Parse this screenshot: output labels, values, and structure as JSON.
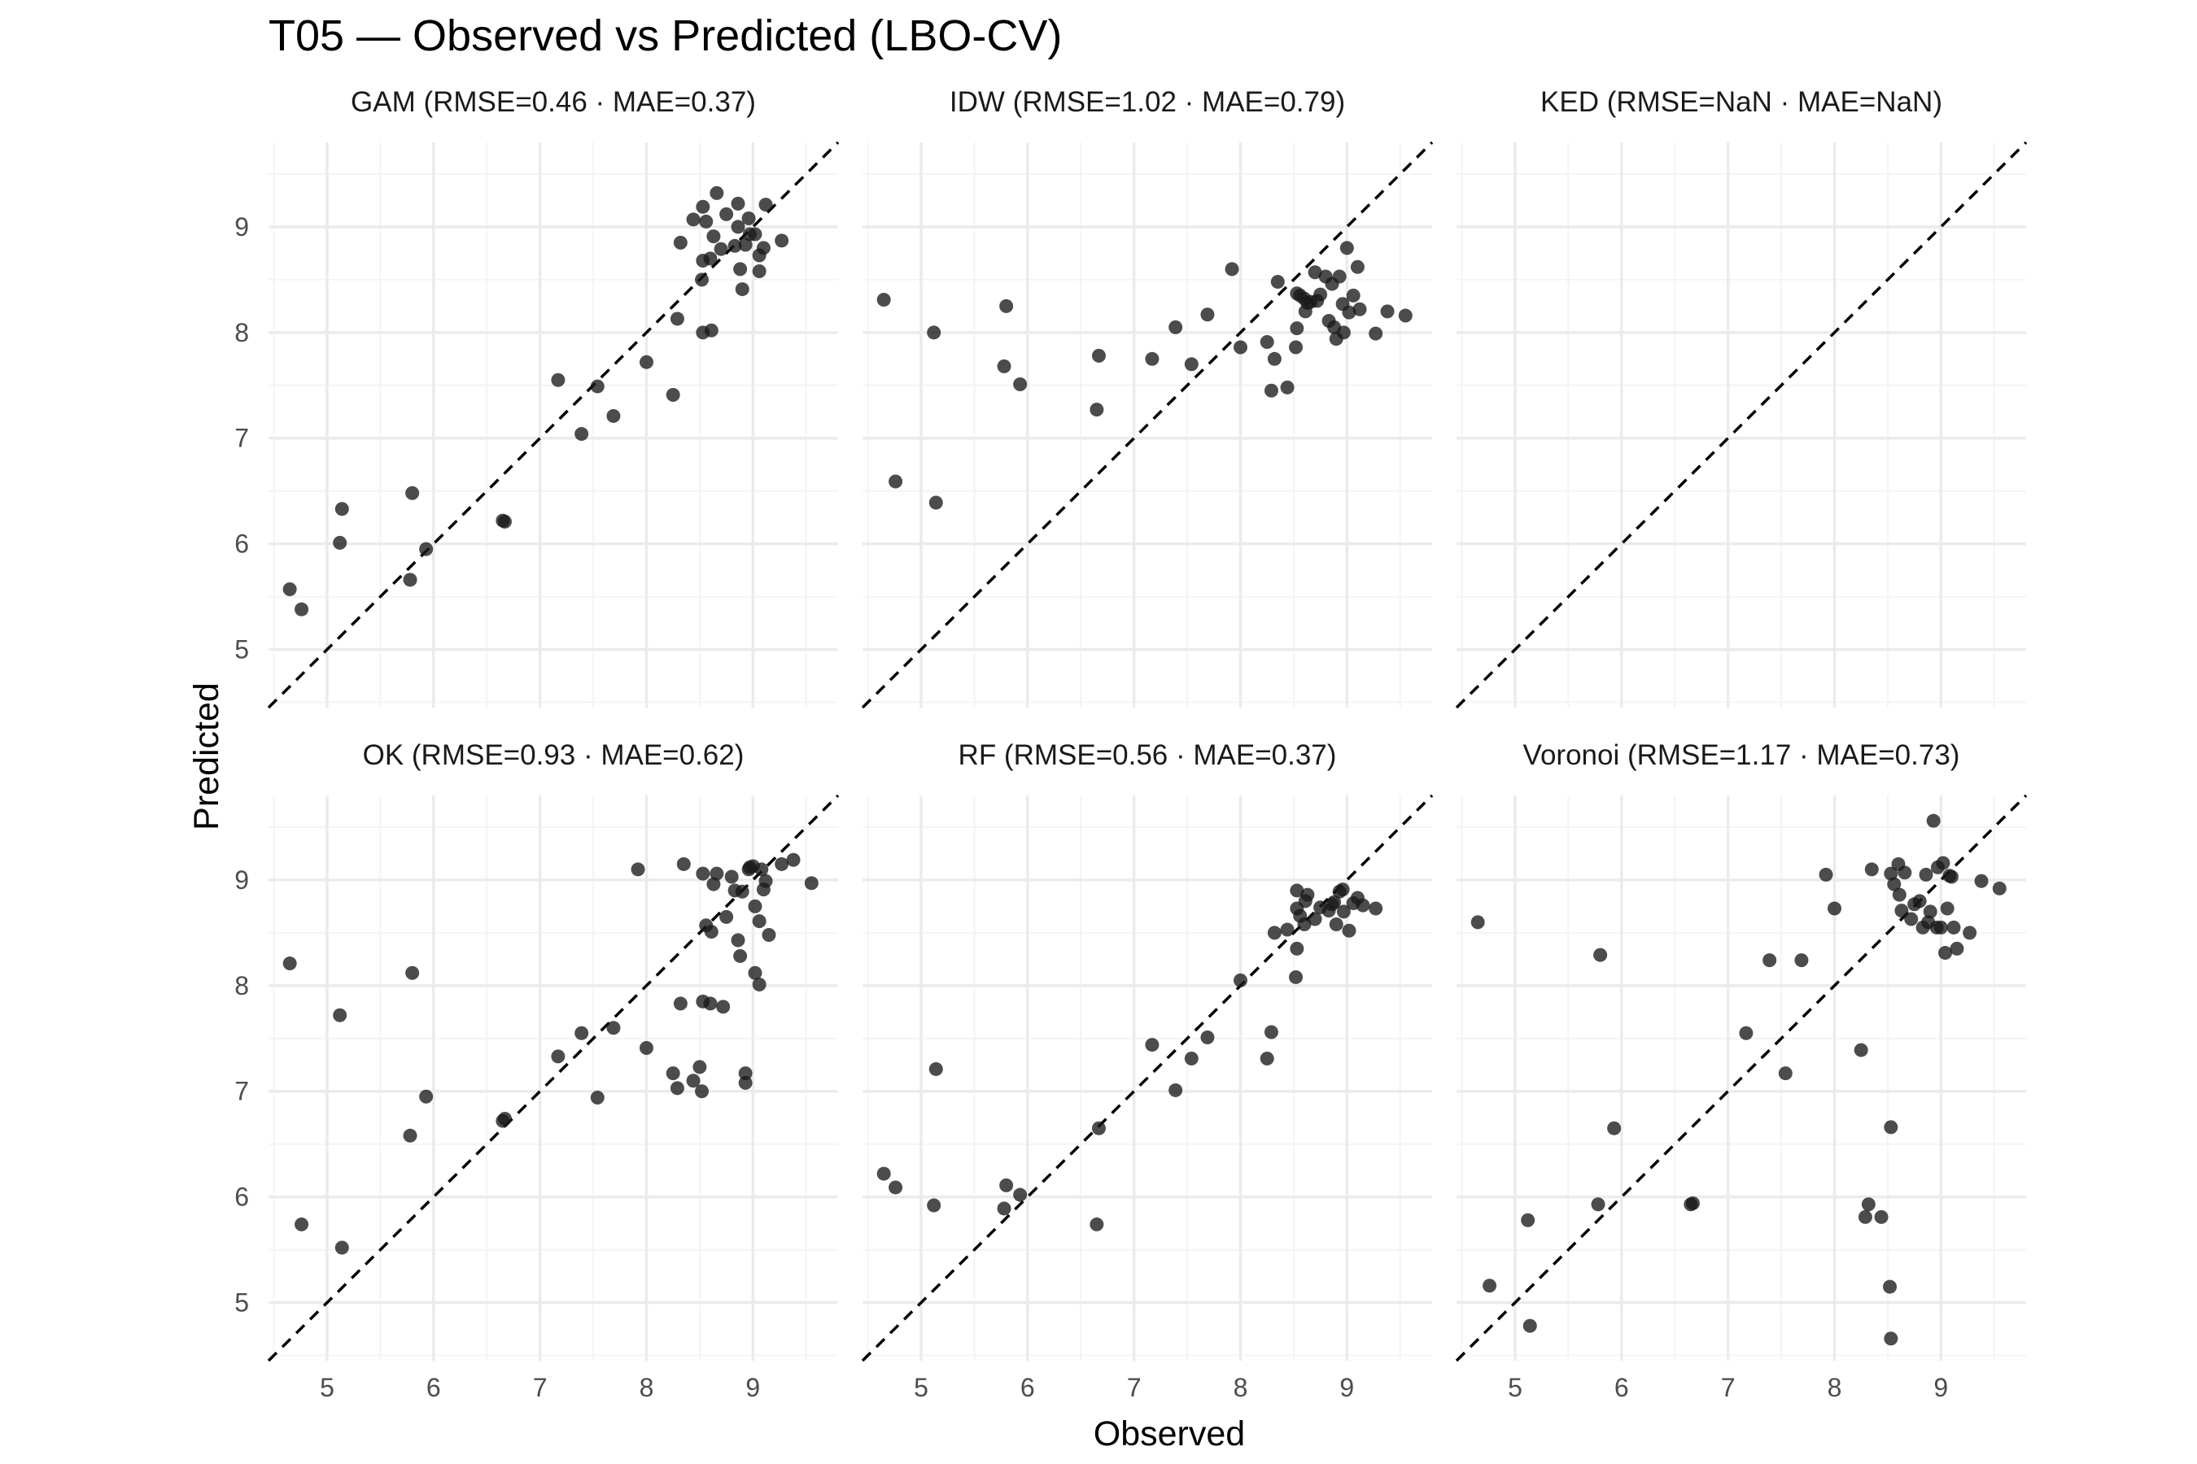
{
  "figure": {
    "title": "T05 — Observed vs Predicted (LBO-CV)",
    "xlabel": "Observed",
    "ylabel": "Predicted"
  },
  "colors": {
    "background": "#ffffff",
    "grid_major": "#ebebeb",
    "grid_minor": "#f4f4f4",
    "points": "#1a1a1a",
    "reference_line": "#000000",
    "tick_text": "#4d4d4d"
  },
  "chart_data": [
    {
      "type": "scatter",
      "title": "GAM  (RMSE=0.46 · MAE=0.37)",
      "xlim": [
        4.45,
        9.8
      ],
      "ylim": [
        4.45,
        9.8
      ],
      "x_ticks": [
        "5",
        "6",
        "7",
        "8",
        "9"
      ],
      "y_ticks": [
        "5",
        "6",
        "7",
        "8",
        "9"
      ],
      "reference_line": "y = x",
      "grid": true,
      "points": [
        [
          4.65,
          5.57
        ],
        [
          4.76,
          5.38
        ],
        [
          5.12,
          6.01
        ],
        [
          5.14,
          6.33
        ],
        [
          5.78,
          5.66
        ],
        [
          5.8,
          6.48
        ],
        [
          5.93,
          5.95
        ],
        [
          6.65,
          6.22
        ],
        [
          6.67,
          6.21
        ],
        [
          7.17,
          7.55
        ],
        [
          7.39,
          7.04
        ],
        [
          7.54,
          7.49
        ],
        [
          7.69,
          7.21
        ],
        [
          8.0,
          7.72
        ],
        [
          8.25,
          7.41
        ],
        [
          8.29,
          8.13
        ],
        [
          8.32,
          8.85
        ],
        [
          8.44,
          9.07
        ],
        [
          8.52,
          8.5
        ],
        [
          8.53,
          8.68
        ],
        [
          8.53,
          8.0
        ],
        [
          8.53,
          9.19
        ],
        [
          8.56,
          9.05
        ],
        [
          8.6,
          8.7
        ],
        [
          8.61,
          8.02
        ],
        [
          8.63,
          8.91
        ],
        [
          8.66,
          9.32
        ],
        [
          8.7,
          8.79
        ],
        [
          8.75,
          9.12
        ],
        [
          8.83,
          8.82
        ],
        [
          8.86,
          9.22
        ],
        [
          8.86,
          9.0
        ],
        [
          8.88,
          8.6
        ],
        [
          8.9,
          8.41
        ],
        [
          8.93,
          8.83
        ],
        [
          8.96,
          9.08
        ],
        [
          8.97,
          8.93
        ],
        [
          9.02,
          8.93
        ],
        [
          9.06,
          8.73
        ],
        [
          9.06,
          8.58
        ],
        [
          9.1,
          8.8
        ],
        [
          9.12,
          9.21
        ],
        [
          9.27,
          8.87
        ]
      ]
    },
    {
      "type": "scatter",
      "title": "IDW  (RMSE=1.02 · MAE=0.79)",
      "xlim": [
        4.45,
        9.8
      ],
      "ylim": [
        4.45,
        9.8
      ],
      "x_ticks": [
        "5",
        "6",
        "7",
        "8",
        "9"
      ],
      "y_ticks": [
        "5",
        "6",
        "7",
        "8",
        "9"
      ],
      "reference_line": "y = x",
      "grid": true,
      "points": [
        [
          4.65,
          8.31
        ],
        [
          4.76,
          6.59
        ],
        [
          5.12,
          8.0
        ],
        [
          5.14,
          6.39
        ],
        [
          5.78,
          7.68
        ],
        [
          5.8,
          8.25
        ],
        [
          5.93,
          7.51
        ],
        [
          6.65,
          7.27
        ],
        [
          6.67,
          7.78
        ],
        [
          7.17,
          7.75
        ],
        [
          7.39,
          8.05
        ],
        [
          7.54,
          7.7
        ],
        [
          7.69,
          8.17
        ],
        [
          7.92,
          8.6
        ],
        [
          8.0,
          7.86
        ],
        [
          8.25,
          7.91
        ],
        [
          8.29,
          7.45
        ],
        [
          8.32,
          7.75
        ],
        [
          8.35,
          8.48
        ],
        [
          8.44,
          7.48
        ],
        [
          8.52,
          7.86
        ],
        [
          8.53,
          8.04
        ],
        [
          8.53,
          8.37
        ],
        [
          8.56,
          8.35
        ],
        [
          8.6,
          8.32
        ],
        [
          8.61,
          8.2
        ],
        [
          8.63,
          8.28
        ],
        [
          8.66,
          8.29
        ],
        [
          8.7,
          8.57
        ],
        [
          8.72,
          8.3
        ],
        [
          8.75,
          8.36
        ],
        [
          8.8,
          8.53
        ],
        [
          8.83,
          8.11
        ],
        [
          8.86,
          8.46
        ],
        [
          8.88,
          8.05
        ],
        [
          8.9,
          7.94
        ],
        [
          8.93,
          8.53
        ],
        [
          8.96,
          8.27
        ],
        [
          8.97,
          8.0
        ],
        [
          9.0,
          8.8
        ],
        [
          9.02,
          8.19
        ],
        [
          9.06,
          8.35
        ],
        [
          9.1,
          8.62
        ],
        [
          9.12,
          8.22
        ],
        [
          9.27,
          7.99
        ],
        [
          9.38,
          8.2
        ],
        [
          9.55,
          8.16
        ]
      ]
    },
    {
      "type": "scatter",
      "title": "KED  (RMSE=NaN · MAE=NaN)",
      "xlim": [
        4.45,
        9.8
      ],
      "ylim": [
        4.45,
        9.8
      ],
      "x_ticks": [
        "5",
        "6",
        "7",
        "8",
        "9"
      ],
      "y_ticks": [
        "5",
        "6",
        "7",
        "8",
        "9"
      ],
      "reference_line": "y = x",
      "grid": true,
      "points": []
    },
    {
      "type": "scatter",
      "title": "OK  (RMSE=0.93 · MAE=0.62)",
      "xlim": [
        4.45,
        9.8
      ],
      "ylim": [
        4.45,
        9.8
      ],
      "x_ticks": [
        "5",
        "6",
        "7",
        "8",
        "9"
      ],
      "y_ticks": [
        "5",
        "6",
        "7",
        "8",
        "9"
      ],
      "reference_line": "y = x",
      "grid": true,
      "points": [
        [
          4.65,
          8.21
        ],
        [
          4.76,
          5.74
        ],
        [
          5.12,
          7.72
        ],
        [
          5.14,
          5.52
        ],
        [
          5.78,
          6.58
        ],
        [
          5.8,
          8.12
        ],
        [
          5.93,
          6.95
        ],
        [
          6.65,
          6.72
        ],
        [
          6.67,
          6.74
        ],
        [
          7.17,
          7.33
        ],
        [
          7.39,
          7.55
        ],
        [
          7.54,
          6.94
        ],
        [
          7.69,
          7.6
        ],
        [
          7.92,
          9.1
        ],
        [
          8.0,
          7.41
        ],
        [
          8.25,
          7.17
        ],
        [
          8.29,
          7.03
        ],
        [
          8.32,
          7.83
        ],
        [
          8.35,
          9.15
        ],
        [
          8.44,
          7.1
        ],
        [
          8.5,
          7.23
        ],
        [
          8.52,
          7.0
        ],
        [
          8.53,
          7.85
        ],
        [
          8.53,
          9.06
        ],
        [
          8.56,
          8.57
        ],
        [
          8.6,
          7.83
        ],
        [
          8.61,
          8.51
        ],
        [
          8.63,
          8.96
        ],
        [
          8.66,
          9.06
        ],
        [
          8.72,
          7.8
        ],
        [
          8.75,
          8.65
        ],
        [
          8.8,
          9.03
        ],
        [
          8.83,
          8.9
        ],
        [
          8.86,
          8.43
        ],
        [
          8.88,
          8.28
        ],
        [
          8.9,
          8.89
        ],
        [
          8.93,
          7.17
        ],
        [
          8.93,
          7.08
        ],
        [
          8.96,
          9.1
        ],
        [
          8.97,
          9.12
        ],
        [
          9.0,
          9.13
        ],
        [
          9.02,
          8.12
        ],
        [
          9.02,
          8.75
        ],
        [
          9.06,
          8.01
        ],
        [
          9.06,
          8.61
        ],
        [
          9.08,
          9.1
        ],
        [
          9.1,
          8.91
        ],
        [
          9.12,
          8.99
        ],
        [
          9.15,
          8.48
        ],
        [
          9.27,
          9.15
        ],
        [
          9.38,
          9.19
        ],
        [
          9.55,
          8.97
        ]
      ]
    },
    {
      "type": "scatter",
      "title": "RF  (RMSE=0.56 · MAE=0.37)",
      "xlim": [
        4.45,
        9.8
      ],
      "ylim": [
        4.45,
        9.8
      ],
      "x_ticks": [
        "5",
        "6",
        "7",
        "8",
        "9"
      ],
      "y_ticks": [
        "5",
        "6",
        "7",
        "8",
        "9"
      ],
      "reference_line": "y = x",
      "grid": true,
      "points": [
        [
          4.65,
          6.22
        ],
        [
          4.76,
          6.09
        ],
        [
          5.12,
          5.92
        ],
        [
          5.14,
          7.21
        ],
        [
          5.78,
          5.89
        ],
        [
          5.8,
          6.11
        ],
        [
          5.93,
          6.02
        ],
        [
          6.65,
          5.74
        ],
        [
          6.67,
          6.65
        ],
        [
          7.17,
          7.44
        ],
        [
          7.39,
          7.01
        ],
        [
          7.54,
          7.31
        ],
        [
          7.69,
          7.51
        ],
        [
          8.0,
          8.05
        ],
        [
          8.25,
          7.31
        ],
        [
          8.29,
          7.56
        ],
        [
          8.32,
          8.5
        ],
        [
          8.44,
          8.53
        ],
        [
          8.52,
          8.08
        ],
        [
          8.53,
          8.35
        ],
        [
          8.53,
          8.73
        ],
        [
          8.53,
          8.9
        ],
        [
          8.56,
          8.66
        ],
        [
          8.6,
          8.58
        ],
        [
          8.61,
          8.8
        ],
        [
          8.63,
          8.86
        ],
        [
          8.7,
          8.63
        ],
        [
          8.75,
          8.74
        ],
        [
          8.83,
          8.71
        ],
        [
          8.86,
          8.77
        ],
        [
          8.88,
          8.79
        ],
        [
          8.9,
          8.58
        ],
        [
          8.93,
          8.89
        ],
        [
          8.96,
          8.91
        ],
        [
          8.97,
          8.7
        ],
        [
          9.02,
          8.52
        ],
        [
          9.06,
          8.78
        ],
        [
          9.1,
          8.83
        ],
        [
          9.15,
          8.76
        ],
        [
          9.27,
          8.73
        ]
      ]
    },
    {
      "type": "scatter",
      "title": "Voronoi  (RMSE=1.17 · MAE=0.73)",
      "xlim": [
        4.45,
        9.8
      ],
      "ylim": [
        4.45,
        9.8
      ],
      "x_ticks": [
        "5",
        "6",
        "7",
        "8",
        "9"
      ],
      "y_ticks": [
        "5",
        "6",
        "7",
        "8",
        "9"
      ],
      "reference_line": "y = x",
      "grid": true,
      "points": [
        [
          4.65,
          8.6
        ],
        [
          4.76,
          5.16
        ],
        [
          5.12,
          5.78
        ],
        [
          5.14,
          4.78
        ],
        [
          5.78,
          5.93
        ],
        [
          5.8,
          8.29
        ],
        [
          5.93,
          6.65
        ],
        [
          6.65,
          5.93
        ],
        [
          6.67,
          5.94
        ],
        [
          7.17,
          7.55
        ],
        [
          7.39,
          8.24
        ],
        [
          7.54,
          7.17
        ],
        [
          7.69,
          8.24
        ],
        [
          7.92,
          9.05
        ],
        [
          8.0,
          8.73
        ],
        [
          8.25,
          7.39
        ],
        [
          8.29,
          5.81
        ],
        [
          8.32,
          5.93
        ],
        [
          8.35,
          9.1
        ],
        [
          8.44,
          5.81
        ],
        [
          8.52,
          5.15
        ],
        [
          8.53,
          6.66
        ],
        [
          8.53,
          4.66
        ],
        [
          8.53,
          9.06
        ],
        [
          8.56,
          8.96
        ],
        [
          8.6,
          9.15
        ],
        [
          8.61,
          8.86
        ],
        [
          8.63,
          8.71
        ],
        [
          8.66,
          9.07
        ],
        [
          8.72,
          8.63
        ],
        [
          8.75,
          8.77
        ],
        [
          8.8,
          8.8
        ],
        [
          8.83,
          8.55
        ],
        [
          8.86,
          9.05
        ],
        [
          8.88,
          8.6
        ],
        [
          8.9,
          8.7
        ],
        [
          8.93,
          9.56
        ],
        [
          8.96,
          8.55
        ],
        [
          8.97,
          9.12
        ],
        [
          9.0,
          8.55
        ],
        [
          9.02,
          9.16
        ],
        [
          9.04,
          8.31
        ],
        [
          9.06,
          8.73
        ],
        [
          9.08,
          9.04
        ],
        [
          9.1,
          9.03
        ],
        [
          9.12,
          8.55
        ],
        [
          9.15,
          8.35
        ],
        [
          9.27,
          8.5
        ],
        [
          9.38,
          8.99
        ],
        [
          9.55,
          8.92
        ]
      ]
    }
  ]
}
